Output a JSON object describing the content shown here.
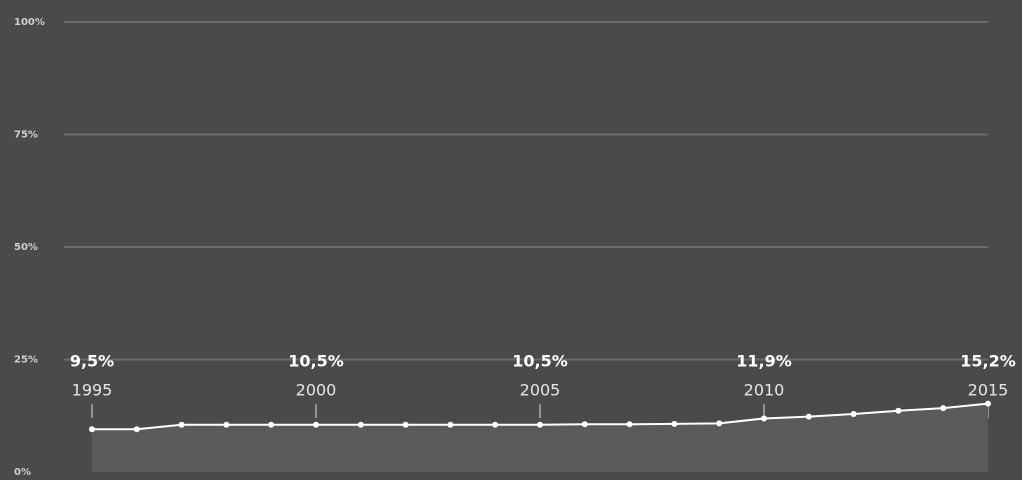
{
  "chart_data": {
    "type": "line",
    "x": [
      1995,
      1996,
      1997,
      1998,
      1999,
      2000,
      2001,
      2002,
      2003,
      2004,
      2005,
      2006,
      2007,
      2008,
      2009,
      2010,
      2011,
      2012,
      2013,
      2014,
      2015
    ],
    "series": [
      {
        "color": "#ffffff",
        "values": [
          9.5,
          9.5,
          10.5,
          10.5,
          10.5,
          10.5,
          10.5,
          10.5,
          10.5,
          10.5,
          10.5,
          10.6,
          10.6,
          10.7,
          10.8,
          11.9,
          12.3,
          12.9,
          13.6,
          14.2,
          15.2
        ],
        "value_labels": [
          "9,5%",
          null,
          null,
          null,
          null,
          "10,5%",
          null,
          null,
          null,
          null,
          "10,5%",
          null,
          null,
          null,
          null,
          "11,9%",
          null,
          null,
          null,
          null,
          "15,2%"
        ]
      }
    ],
    "xlim": [
      1995,
      2015
    ],
    "xticks": [
      1995,
      2000,
      2005,
      2010,
      2015
    ],
    "ylim": [
      0,
      100
    ],
    "yticks": [
      {
        "value": 0,
        "label": "0%"
      },
      {
        "value": 25,
        "label": "25%"
      },
      {
        "value": 50,
        "label": "50%"
      },
      {
        "value": 75,
        "label": "75%"
      },
      {
        "value": 100,
        "label": "100%"
      }
    ],
    "grid": true
  }
}
